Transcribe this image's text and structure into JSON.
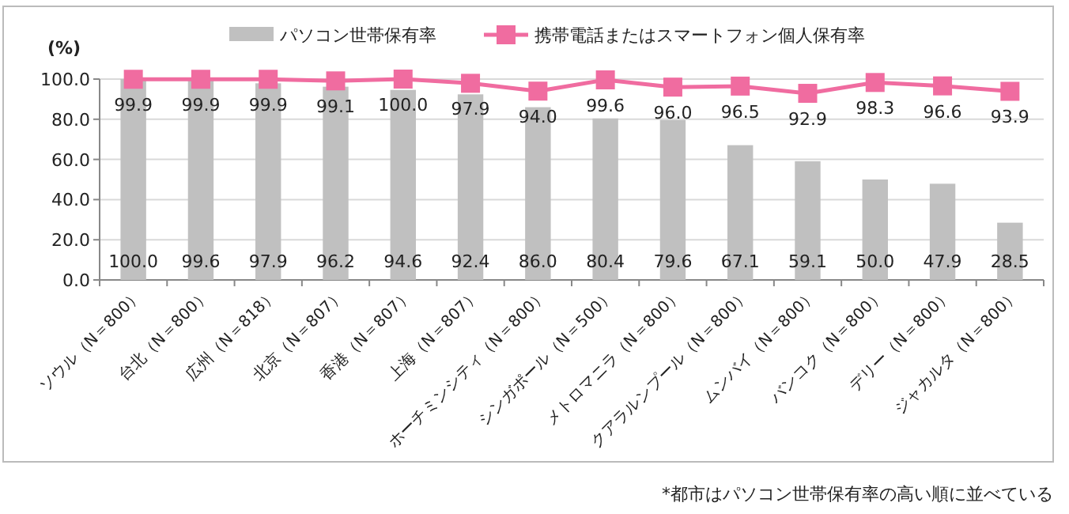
{
  "chart_data": {
    "type": "bar",
    "ylabel": "(%)",
    "categories": [
      "ソウル（N＝800）",
      "台北（N＝800）",
      "広州（N＝818）",
      "北京（N＝807）",
      "香港（N＝807）",
      "上海（N＝807）",
      "ホーチミンシティ（N＝800）",
      "シンガポール（N＝500）",
      "メトロマニラ（N＝800）",
      "クアラルンプール（N＝800）",
      "ムンバイ（N＝800）",
      "バンコク（N＝800）",
      "デリー（N＝800）",
      "ジャカルタ（N＝800）"
    ],
    "series": [
      {
        "name": "パソコン世帯保有率",
        "color": "#c0c0c0",
        "values": [
          100.0,
          99.6,
          97.9,
          96.2,
          94.6,
          92.4,
          86.0,
          80.4,
          79.6,
          67.1,
          59.1,
          50.0,
          47.9,
          28.5
        ],
        "value_labels": [
          "100.0",
          "99.6",
          "97.9",
          "96.2",
          "94.6",
          "92.4",
          "86.0",
          "80.4",
          "79.6",
          "67.1",
          "59.1",
          "50.0",
          "47.9",
          "28.5"
        ]
      },
      {
        "name": "携帯電話またはスマートフォン個人保有率",
        "type": "line",
        "color": "#f06ca0",
        "values": [
          99.9,
          99.9,
          99.9,
          99.1,
          100.0,
          97.9,
          94.0,
          99.6,
          96.0,
          96.5,
          92.9,
          98.3,
          96.6,
          93.9
        ],
        "value_labels": [
          "99.9",
          "99.9",
          "99.9",
          "99.1",
          "100.0",
          "97.9",
          "94.0",
          "99.6",
          "96.0",
          "96.5",
          "92.9",
          "98.3",
          "96.6",
          "93.9"
        ]
      }
    ],
    "ylim": [
      0,
      100
    ],
    "yticks": [
      {
        "value": 0,
        "label": "0.0"
      },
      {
        "value": 20,
        "label": "20.0"
      },
      {
        "value": 40,
        "label": "40.0"
      },
      {
        "value": 60,
        "label": "60.0"
      },
      {
        "value": 80,
        "label": "80.0"
      },
      {
        "value": 100,
        "label": "100.0"
      }
    ],
    "grid": "y",
    "legend": "top",
    "marker": "square",
    "annotations": [
      "*都市はパソコン世帯保有率の高い順に並べている"
    ]
  }
}
